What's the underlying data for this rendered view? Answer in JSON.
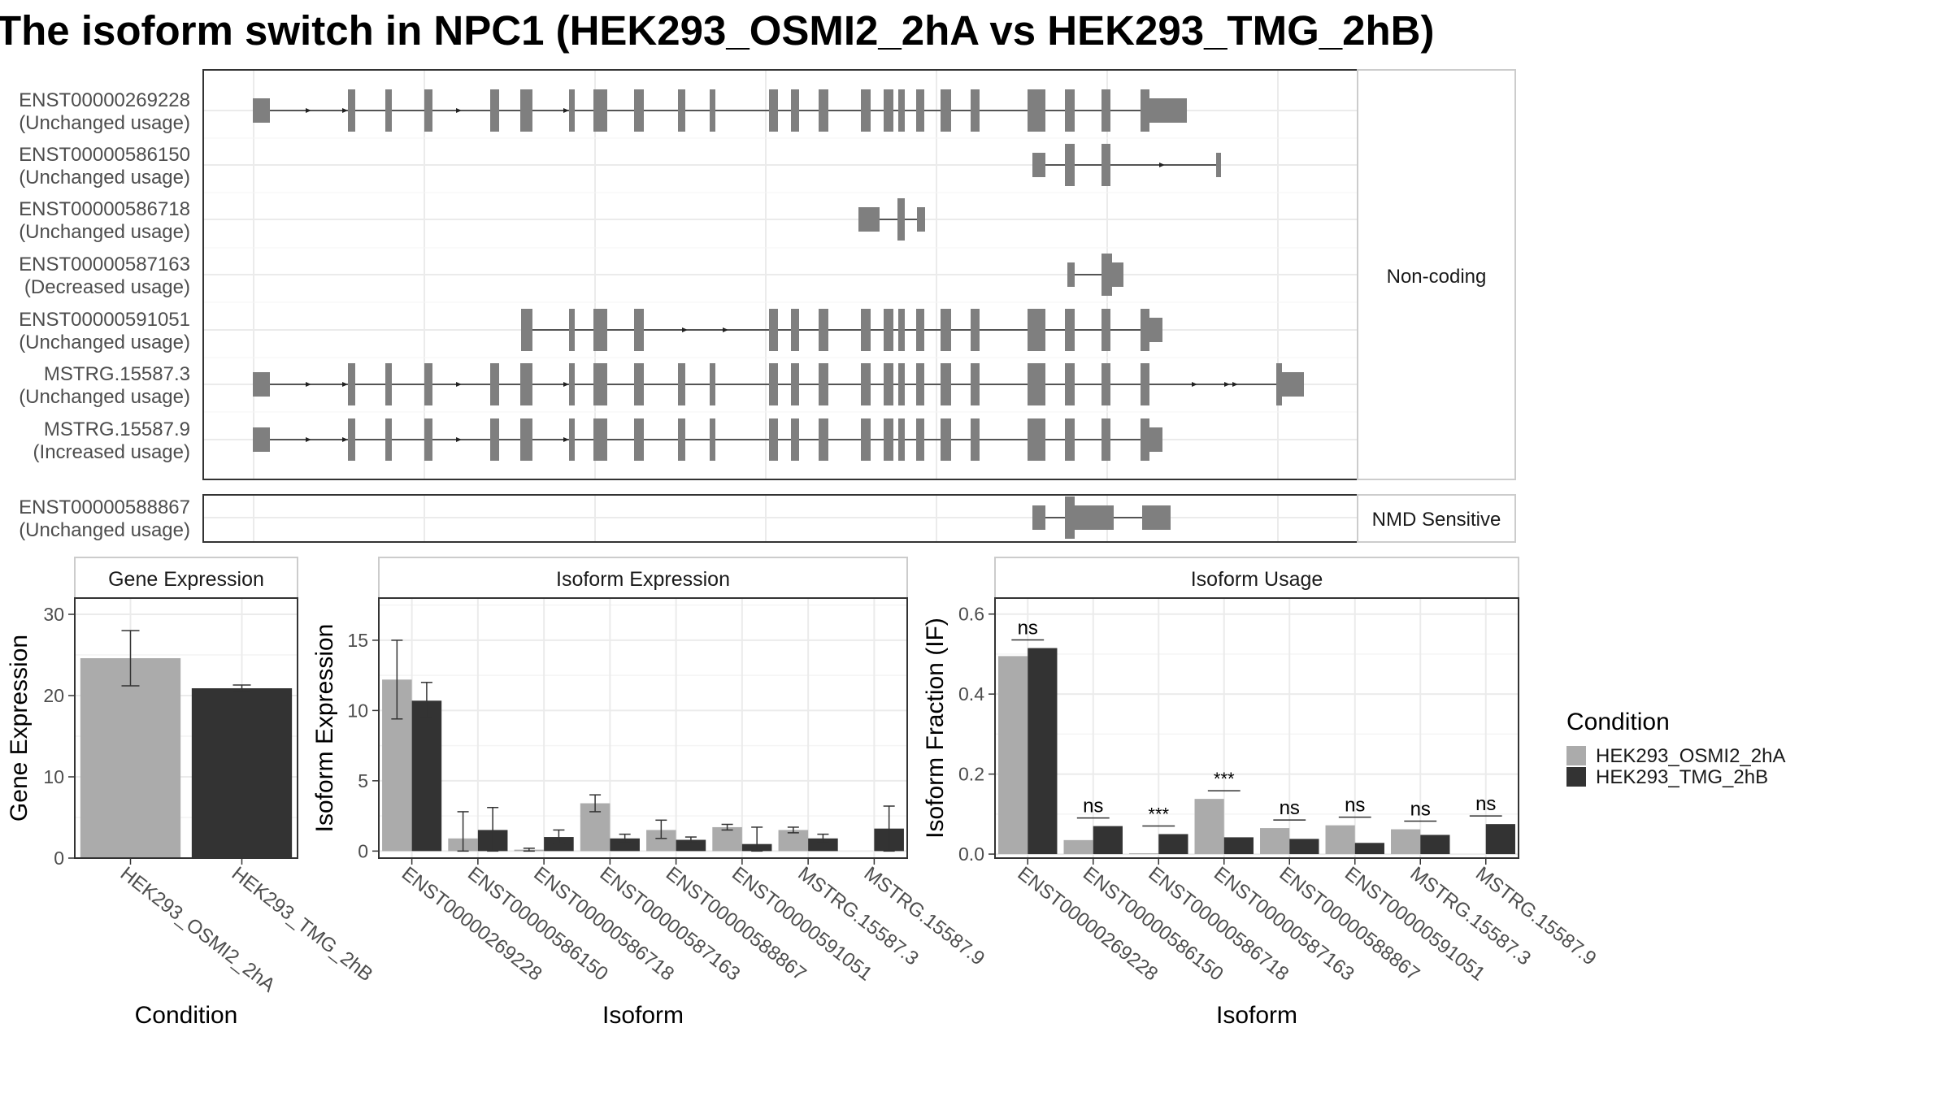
{
  "title": "The isoform switch in NPC1 (HEK293_OSMI2_2hA vs HEK293_TMG_2hB)",
  "structure": {
    "noncoding_label": "Non-coding",
    "nmd_label": "NMD Sensitive",
    "transcripts": [
      {
        "id": "ENST00000269228",
        "usage": "(Unchanged usage)"
      },
      {
        "id": "ENST00000586150",
        "usage": "(Unchanged usage)"
      },
      {
        "id": "ENST00000586718",
        "usage": "(Unchanged usage)"
      },
      {
        "id": "ENST00000587163",
        "usage": "(Decreased usage)"
      },
      {
        "id": "ENST00000591051",
        "usage": "(Unchanged usage)"
      },
      {
        "id": "MSTRG.15587.3",
        "usage": "(Unchanged usage)"
      },
      {
        "id": "MSTRG.15587.9",
        "usage": "(Increased usage)"
      },
      {
        "id": "ENST00000588867",
        "usage": "(Unchanged usage)"
      }
    ]
  },
  "legend": {
    "title": "Condition",
    "items": [
      {
        "label": "HEK293_OSMI2_2hA",
        "color": "#ababab"
      },
      {
        "label": "HEK293_TMG_2hB",
        "color": "#333333"
      }
    ]
  },
  "chart_data": [
    {
      "type": "bar",
      "title": "Gene Expression",
      "xlabel": "Condition",
      "ylabel": "Gene Expression",
      "categories": [
        "HEK293_OSMI2_2hA",
        "HEK293_TMG_2hB"
      ],
      "values": [
        24.6,
        20.9
      ],
      "error_low": [
        21.2,
        20.5
      ],
      "error_high": [
        28.0,
        21.3
      ],
      "ylim": [
        0,
        32
      ],
      "yticks": [
        0,
        10,
        20,
        30
      ]
    },
    {
      "type": "bar",
      "title": "Isoform Expression",
      "xlabel": "Isoform",
      "ylabel": "Isoform Expression",
      "categories": [
        "ENST00000269228",
        "ENST00000586150",
        "ENST00000586718",
        "ENST00000587163",
        "ENST00000588867",
        "ENST00000591051",
        "MSTRG.15587.3",
        "MSTRG.15587.9"
      ],
      "series": [
        {
          "name": "HEK293_OSMI2_2hA",
          "values": [
            12.2,
            0.9,
            0.1,
            3.4,
            1.5,
            1.7,
            1.5,
            0.0
          ],
          "err_low": [
            9.4,
            0.0,
            0.0,
            2.8,
            0.9,
            1.5,
            1.3,
            0.0
          ],
          "err_high": [
            15.0,
            2.8,
            0.2,
            4.0,
            2.2,
            1.9,
            1.7,
            0.0
          ]
        },
        {
          "name": "HEK293_TMG_2hB",
          "values": [
            10.7,
            1.5,
            1.0,
            0.9,
            0.8,
            0.5,
            0.9,
            1.6
          ],
          "err_low": [
            9.5,
            0.0,
            0.5,
            0.6,
            0.6,
            0.0,
            0.6,
            0.0
          ],
          "err_high": [
            12.0,
            3.1,
            1.5,
            1.2,
            1.0,
            1.7,
            1.2,
            3.2
          ]
        }
      ],
      "ylim": [
        -0.5,
        18
      ],
      "yticks": [
        0,
        5,
        10,
        15
      ]
    },
    {
      "type": "bar",
      "title": "Isoform Usage",
      "xlabel": "Isoform",
      "ylabel": "Isoform Fraction (IF)",
      "categories": [
        "ENST00000269228",
        "ENST00000586150",
        "ENST00000586718",
        "ENST00000587163",
        "ENST00000588867",
        "ENST00000591051",
        "MSTRG.15587.3",
        "MSTRG.15587.9"
      ],
      "series": [
        {
          "name": "HEK293_OSMI2_2hA",
          "values": [
            0.495,
            0.035,
            0.002,
            0.138,
            0.065,
            0.072,
            0.062,
            0.0
          ]
        },
        {
          "name": "HEK293_TMG_2hB",
          "values": [
            0.515,
            0.07,
            0.05,
            0.042,
            0.038,
            0.028,
            0.048,
            0.075
          ]
        }
      ],
      "significance": [
        "ns",
        "ns",
        "***",
        "***",
        "ns",
        "ns",
        "ns",
        "ns"
      ],
      "ylim": [
        -0.01,
        0.64
      ],
      "yticks": [
        0.0,
        0.2,
        0.4,
        0.6
      ],
      "yticklabels": [
        "0.0",
        "0.2",
        "0.4",
        "0.6"
      ]
    }
  ]
}
